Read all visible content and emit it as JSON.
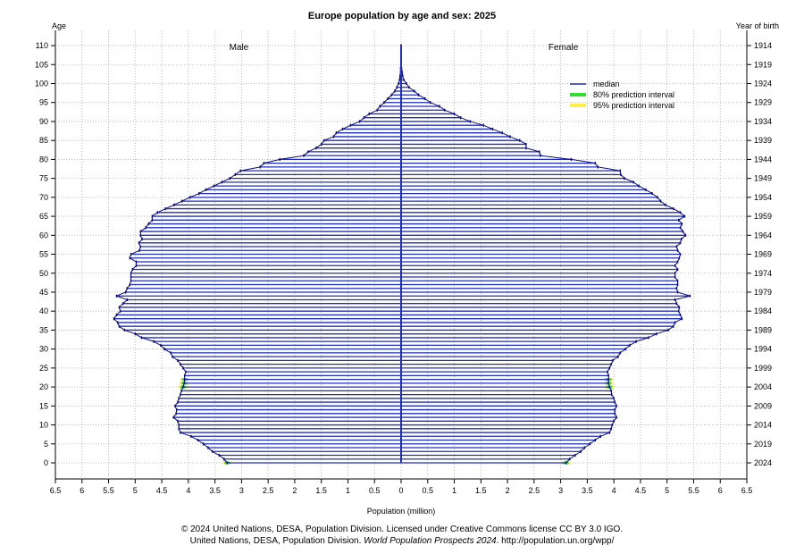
{
  "chart_data": {
    "type": "population-pyramid",
    "title": "Europe population by age and sex: 2025",
    "left_axis_label": "Age",
    "right_axis_label": "Year of birth",
    "xlabel": "Population (million)",
    "side_labels": {
      "male": "Male",
      "female": "Female"
    },
    "legend": [
      {
        "label": "median",
        "color": "#1f2fbf"
      },
      {
        "label": "80% prediction interval",
        "color": "#33dd33"
      },
      {
        "label": "95% prediction interval",
        "color": "#ffee44"
      }
    ],
    "legend_position": "top-right",
    "grid": true,
    "xlim": [
      -6.5,
      6.5
    ],
    "ylim": [
      0,
      110
    ],
    "x_ticks": [
      -6.5,
      -6,
      -5.5,
      -5,
      -4.5,
      -4,
      -3.5,
      -3,
      -2.5,
      -2,
      -1.5,
      -1,
      -0.5,
      0,
      0.5,
      1,
      1.5,
      2,
      2.5,
      3,
      3.5,
      4,
      4.5,
      5,
      5.5,
      6,
      6.5
    ],
    "x_tick_labels": [
      "6.5",
      "6",
      "5.5",
      "5",
      "4.5",
      "4",
      "3.5",
      "3",
      "2.5",
      "2",
      "1.5",
      "1",
      "0.5",
      "0",
      "0.5",
      "1",
      "1.5",
      "2",
      "2.5",
      "3",
      "3.5",
      "4",
      "4.5",
      "5",
      "5.5",
      "6",
      "6.5"
    ],
    "age_ticks": [
      "0",
      "5",
      "10",
      "15",
      "20",
      "25",
      "30",
      "35",
      "40",
      "45",
      "50",
      "55",
      "60",
      "65",
      "70",
      "75",
      "80",
      "85",
      "90",
      "95",
      "100",
      "105",
      "110"
    ],
    "birth_year_ticks": [
      "2024",
      "2019",
      "2014",
      "2009",
      "2004",
      "1999",
      "1994",
      "1989",
      "1984",
      "1979",
      "1974",
      "1969",
      "1964",
      "1959",
      "1954",
      "1949",
      "1944",
      "1939",
      "1934",
      "1929",
      "1924",
      "1919",
      "1914"
    ],
    "ages": [
      0,
      1,
      2,
      3,
      4,
      5,
      6,
      7,
      8,
      9,
      10,
      11,
      12,
      13,
      14,
      15,
      16,
      17,
      18,
      19,
      20,
      21,
      22,
      23,
      24,
      25,
      26,
      27,
      28,
      29,
      30,
      31,
      32,
      33,
      34,
      35,
      36,
      37,
      38,
      39,
      40,
      41,
      42,
      43,
      44,
      45,
      46,
      47,
      48,
      49,
      50,
      51,
      52,
      53,
      54,
      55,
      56,
      57,
      58,
      59,
      60,
      61,
      62,
      63,
      64,
      65,
      66,
      67,
      68,
      69,
      70,
      71,
      72,
      73,
      74,
      75,
      76,
      77,
      78,
      79,
      80,
      81,
      82,
      83,
      84,
      85,
      86,
      87,
      88,
      89,
      90,
      91,
      92,
      93,
      94,
      95,
      96,
      97,
      98,
      99,
      100,
      101,
      102,
      103,
      104,
      105,
      106,
      107,
      108,
      109,
      110
    ],
    "series": [
      {
        "name": "Male",
        "values": [
          3.27,
          3.33,
          3.42,
          3.55,
          3.63,
          3.72,
          3.82,
          3.95,
          4.15,
          4.18,
          4.18,
          4.2,
          4.28,
          4.23,
          4.22,
          4.25,
          4.2,
          4.18,
          4.15,
          4.13,
          4.1,
          4.08,
          4.07,
          4.07,
          4.05,
          4.1,
          4.15,
          4.2,
          4.3,
          4.33,
          4.45,
          4.52,
          4.65,
          4.88,
          5.0,
          5.2,
          5.3,
          5.33,
          5.4,
          5.35,
          5.28,
          5.3,
          5.23,
          5.15,
          5.35,
          5.18,
          5.15,
          5.1,
          5.08,
          5.08,
          5.08,
          5.05,
          4.98,
          4.98,
          5.1,
          5.08,
          4.92,
          4.9,
          4.93,
          4.87,
          4.9,
          4.9,
          4.8,
          4.75,
          4.68,
          4.68,
          4.58,
          4.43,
          4.27,
          4.12,
          3.97,
          3.8,
          3.67,
          3.52,
          3.37,
          3.22,
          3.12,
          3.02,
          2.65,
          2.58,
          2.28,
          1.83,
          1.75,
          1.6,
          1.5,
          1.45,
          1.27,
          1.22,
          1.1,
          0.95,
          0.78,
          0.7,
          0.6,
          0.45,
          0.4,
          0.32,
          0.25,
          0.18,
          0.12,
          0.08,
          0.05,
          0.03,
          0.02,
          0.01,
          0.01,
          0.005,
          0.003,
          0.002,
          0.001,
          0.001,
          0.001
        ]
      },
      {
        "name": "Female",
        "values": [
          3.1,
          3.17,
          3.27,
          3.38,
          3.45,
          3.55,
          3.65,
          3.75,
          3.92,
          3.95,
          3.97,
          4.0,
          4.05,
          4.02,
          4.02,
          4.05,
          4.02,
          4.0,
          3.96,
          3.95,
          3.92,
          3.9,
          3.9,
          3.9,
          3.88,
          3.92,
          3.95,
          3.98,
          4.08,
          4.12,
          4.22,
          4.3,
          4.42,
          4.65,
          4.8,
          5.02,
          5.12,
          5.15,
          5.28,
          5.25,
          5.22,
          5.23,
          5.18,
          5.15,
          5.43,
          5.2,
          5.18,
          5.2,
          5.2,
          5.15,
          5.15,
          5.2,
          5.15,
          5.2,
          5.23,
          5.25,
          5.2,
          5.18,
          5.25,
          5.27,
          5.35,
          5.3,
          5.25,
          5.28,
          5.22,
          5.33,
          5.25,
          5.12,
          4.97,
          4.88,
          4.82,
          4.72,
          4.6,
          4.47,
          4.37,
          4.2,
          4.13,
          4.12,
          3.7,
          3.65,
          3.2,
          2.62,
          2.6,
          2.35,
          2.35,
          2.23,
          2.05,
          1.9,
          1.72,
          1.55,
          1.3,
          1.12,
          1.0,
          0.82,
          0.72,
          0.55,
          0.45,
          0.33,
          0.25,
          0.15,
          0.1,
          0.05,
          0.03,
          0.02,
          0.01,
          0.005,
          0.003,
          0.002,
          0.001,
          0.001,
          0.001
        ]
      }
    ]
  },
  "footer": {
    "line1": "© 2024 United Nations, DESA, Population Division. Licensed under Creative Commons license CC BY 3.0 IGO.",
    "line2_prefix": "United Nations, DESA, Population Division. ",
    "line2_italic": "World Population Prospects 2024",
    "line2_suffix": ". http://population.un.org/wpp/"
  }
}
